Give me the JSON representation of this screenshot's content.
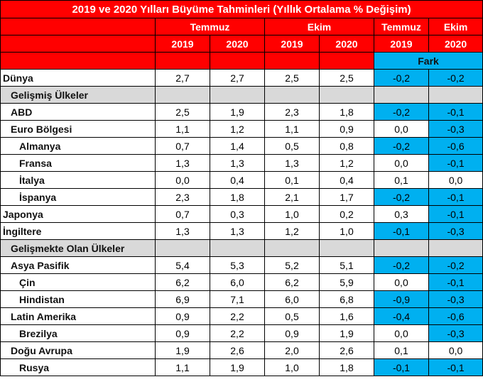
{
  "title": "2019 ve 2020 Yılları Büyüme Tahminleri (Yıllık Ortalama % Değişim)",
  "header": {
    "groups": [
      "Temmuz",
      "Ekim",
      "Temmuz",
      "Ekim"
    ],
    "years": [
      "2019",
      "2020",
      "2019",
      "2020",
      "2019",
      "2020"
    ],
    "fark_label": "Fark"
  },
  "colors": {
    "header_red": "#ff0000",
    "highlight_blue": "#00b0f0",
    "section_gray": "#d9d9d9"
  },
  "rows": [
    {
      "type": "data",
      "indent": 0,
      "label": "Dünya",
      "values": [
        "2,7",
        "2,7",
        "2,5",
        "2,5",
        "-0,2",
        "-0,2"
      ],
      "blue": [
        true,
        true
      ]
    },
    {
      "type": "section",
      "label": "Gelişmiş Ülkeler"
    },
    {
      "type": "data",
      "indent": 1,
      "label": "ABD",
      "values": [
        "2,5",
        "1,9",
        "2,3",
        "1,8",
        "-0,2",
        "-0,1"
      ],
      "blue": [
        true,
        true
      ]
    },
    {
      "type": "data",
      "indent": 1,
      "label": "Euro Bölgesi",
      "values": [
        "1,1",
        "1,2",
        "1,1",
        "0,9",
        "0,0",
        "-0,3"
      ],
      "blue": [
        false,
        true
      ]
    },
    {
      "type": "data",
      "indent": 2,
      "label": "Almanya",
      "values": [
        "0,7",
        "1,4",
        "0,5",
        "0,8",
        "-0,2",
        "-0,6"
      ],
      "blue": [
        true,
        true
      ]
    },
    {
      "type": "data",
      "indent": 2,
      "label": "Fransa",
      "values": [
        "1,3",
        "1,3",
        "1,3",
        "1,2",
        "0,0",
        "-0,1"
      ],
      "blue": [
        false,
        true
      ]
    },
    {
      "type": "data",
      "indent": 2,
      "label": "İtalya",
      "values": [
        "0,0",
        "0,4",
        "0,1",
        "0,4",
        "0,1",
        "0,0"
      ],
      "blue": [
        false,
        false
      ]
    },
    {
      "type": "data",
      "indent": 2,
      "label": "İspanya",
      "values": [
        "2,3",
        "1,8",
        "2,1",
        "1,7",
        "-0,2",
        "-0,1"
      ],
      "blue": [
        true,
        true
      ]
    },
    {
      "type": "data",
      "indent": 0,
      "label": "Japonya",
      "values": [
        "0,7",
        "0,3",
        "1,0",
        "0,2",
        "0,3",
        "-0,1"
      ],
      "blue": [
        false,
        true
      ]
    },
    {
      "type": "data",
      "indent": 0,
      "label": "İngiltere",
      "values": [
        "1,3",
        "1,3",
        "1,2",
        "1,0",
        "-0,1",
        "-0,3"
      ],
      "blue": [
        true,
        true
      ]
    },
    {
      "type": "section",
      "label": "Gelişmekte Olan Ülkeler"
    },
    {
      "type": "data",
      "indent": 1,
      "label": "Asya Pasifik",
      "values": [
        "5,4",
        "5,3",
        "5,2",
        "5,1",
        "-0,2",
        "-0,2"
      ],
      "blue": [
        true,
        true
      ]
    },
    {
      "type": "data",
      "indent": 2,
      "label": "Çin",
      "values": [
        "6,2",
        "6,0",
        "6,2",
        "5,9",
        "0,0",
        "-0,1"
      ],
      "blue": [
        false,
        true
      ]
    },
    {
      "type": "data",
      "indent": 2,
      "label": "Hindistan",
      "values": [
        "6,9",
        "7,1",
        "6,0",
        "6,8",
        "-0,9",
        "-0,3"
      ],
      "blue": [
        true,
        true
      ]
    },
    {
      "type": "data",
      "indent": 1,
      "label": "Latin Amerika",
      "values": [
        "0,9",
        "2,2",
        "0,5",
        "1,6",
        "-0,4",
        "-0,6"
      ],
      "blue": [
        true,
        true
      ]
    },
    {
      "type": "data",
      "indent": 2,
      "label": "Brezilya",
      "values": [
        "0,9",
        "2,2",
        "0,9",
        "1,9",
        "0,0",
        "-0,3"
      ],
      "blue": [
        false,
        true
      ]
    },
    {
      "type": "data",
      "indent": 1,
      "label": "Doğu Avrupa",
      "values": [
        "1,9",
        "2,6",
        "2,0",
        "2,6",
        "0,1",
        "0,0"
      ],
      "blue": [
        false,
        false
      ]
    },
    {
      "type": "data",
      "indent": 2,
      "label": "Rusya",
      "values": [
        "1,1",
        "1,9",
        "1,0",
        "1,8",
        "-0,1",
        "-0,1"
      ],
      "blue": [
        true,
        true
      ]
    }
  ]
}
